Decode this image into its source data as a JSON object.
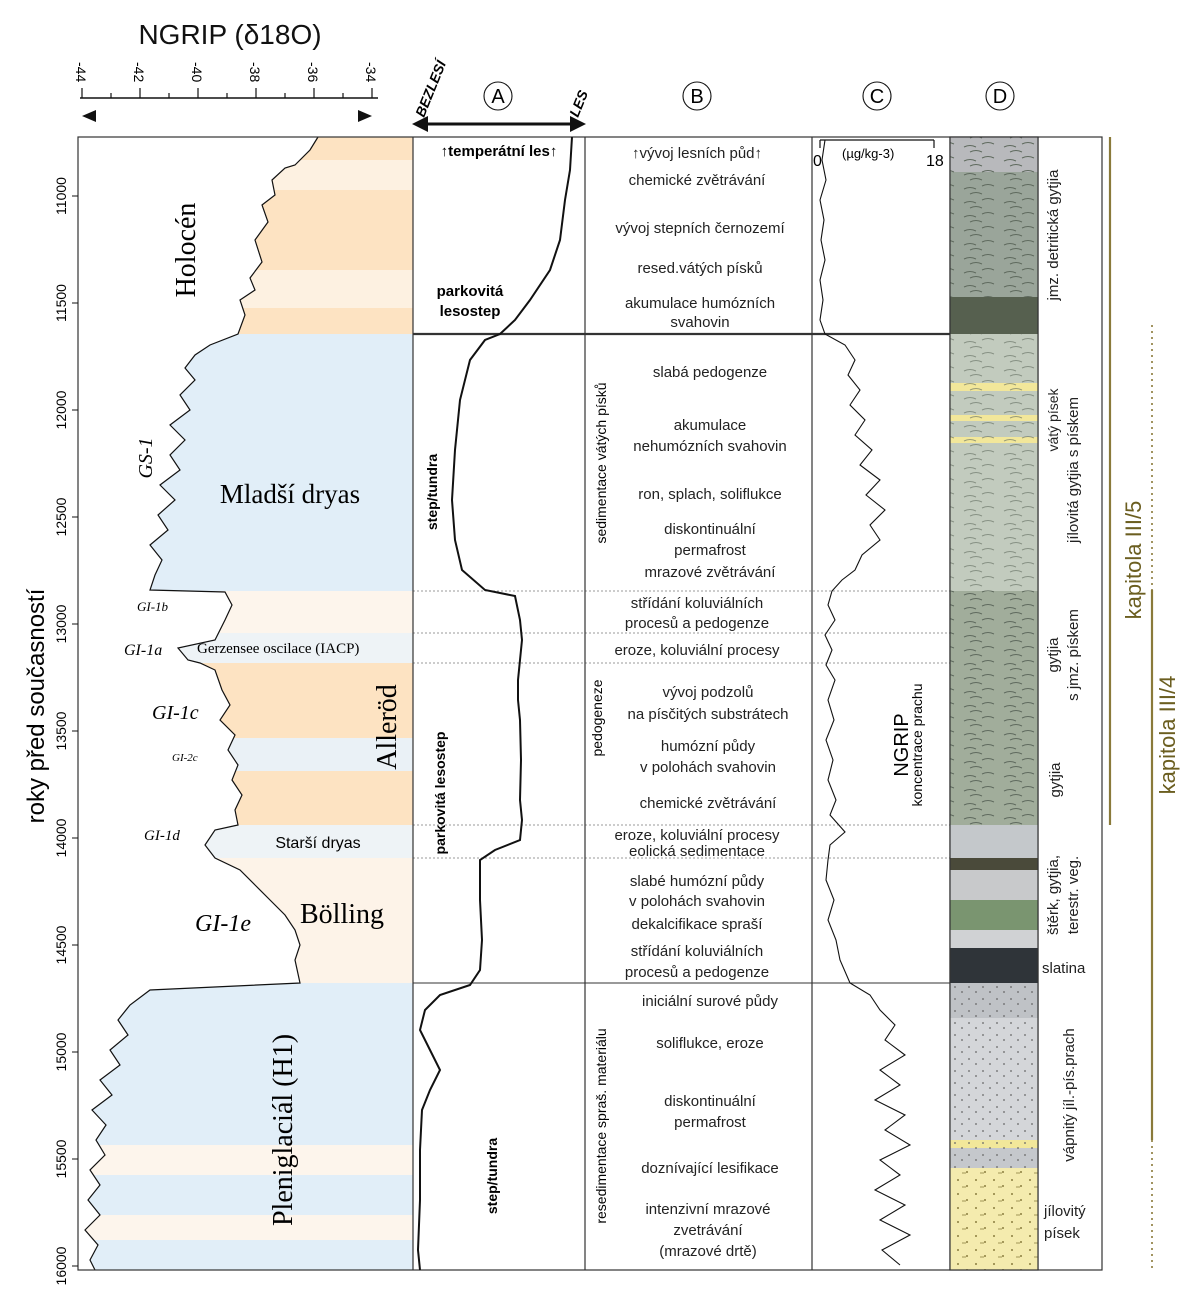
{
  "title": "NGRIP (δ18O)",
  "y_axis_label": "roky před současností",
  "y_ticks": [
    "11000",
    "11500",
    "12000",
    "12500",
    "13000",
    "13500",
    "14000",
    "14500",
    "15000",
    "15500",
    "16000"
  ],
  "x_ticks": [
    "-44",
    "-42",
    "-40",
    "-38",
    "-36",
    "-34"
  ],
  "column_heads": {
    "A": "A",
    "B": "B",
    "C": "C",
    "D": "D",
    "bezlesi": "BEZLESÍ",
    "les": "LES",
    "c_scale_min": "0",
    "c_scale_unit": "(µg/kg-3)",
    "c_scale_max": "18"
  },
  "periods": {
    "holocen": "Holocén",
    "gs1": "GS-1",
    "mladsi_dryas": "Mladší dryas",
    "gi1b": "GI-1b",
    "gi1a": "GI-1a",
    "gerzensee": "Gerzensee oscilace (IACP)",
    "gi1c": "GI-1c",
    "gi2c": "GI-2c",
    "allerod": "Alleröd",
    "gi1d": "GI-1d",
    "starsi_dryas": "Starší dryas",
    "gi1e": "GI-1e",
    "bolling": "Bölling",
    "pleniglacial": "Pleniglaciál (H1)"
  },
  "vegetation": {
    "temperatni_les": "temperátní les",
    "parkovita_lesostep_1": "parkovitá",
    "parkovita_lesostep_2": "lesostep",
    "step_tundra_upper": "step/tundra",
    "parkovita_lesostep_mid": "parkovitá lesostep",
    "step_tundra_lower": "step/tundra"
  },
  "processes": {
    "p1": "vývoj lesních půd",
    "p2": "chemické zvětrávání",
    "p3": "vývoj stepních černozemí",
    "p4": "resed.vátých písků",
    "p5a": "akumulace humózních",
    "p5b": "svahovin",
    "v_sed": "sedimentace vátých písků",
    "p6": "slabá pedogenze",
    "p7a": "akumulace",
    "p7b": "nehumózních svahovin",
    "p8": "ron, splach, soliflukce",
    "p9a": "diskontinuální",
    "p9b": "permafrost",
    "p9c": "mrazové zvětrávání",
    "p10a": "střídání koluviálních",
    "p10b": "procesů a pedogenze",
    "p11": "eroze, koluviální procesy",
    "v_ped": "pedogeneze",
    "p12a": "vývoj podzolů",
    "p12b": "na písčitých substrátech",
    "p13a": "humózní půdy",
    "p13b": "v polohách svahovin",
    "p14": "chemické zvětrávání",
    "p15": "eroze, koluviální procesy",
    "p16": "eolická sedimentace",
    "p17a": "slabé humózní půdy",
    "p17b": "v polohách svahovin",
    "p18": "dekalcifikace spraší",
    "p19a": "střídání koluviálních",
    "p19b": "procesů a pedogenze",
    "v_res": "resedimentace spraš. materiálu",
    "p20": "iniciální surové půdy",
    "p21": "soliflukce, eroze",
    "p22a": "diskontinuální",
    "p22b": "permafrost",
    "p23": "doznívající lesifikace",
    "p24a": "intenzivní mrazové",
    "p24b": "zvetrávání",
    "p24c": "(mrazové drtě)"
  },
  "dust": {
    "label1": "NGRIP",
    "label2": "koncentrace prachu"
  },
  "lithology": {
    "l1": "jmz. detritická gytjia",
    "l2a": "vátý písek",
    "l2b": "jílovitá gytjia s pískem",
    "l3a": "gytjia",
    "l3b": "s jmz. pískem",
    "l4": "gytjia",
    "l5a": "štěrk, gytjia,",
    "l5b": "terestr. veg.",
    "l6": "slatina",
    "l7": "vápnitý jíl.-pís.prach",
    "l8a": "jílovitý",
    "l8b": "písek"
  },
  "chapters": {
    "k5": "kapitola III/5",
    "k4": "kapitola III/4"
  }
}
